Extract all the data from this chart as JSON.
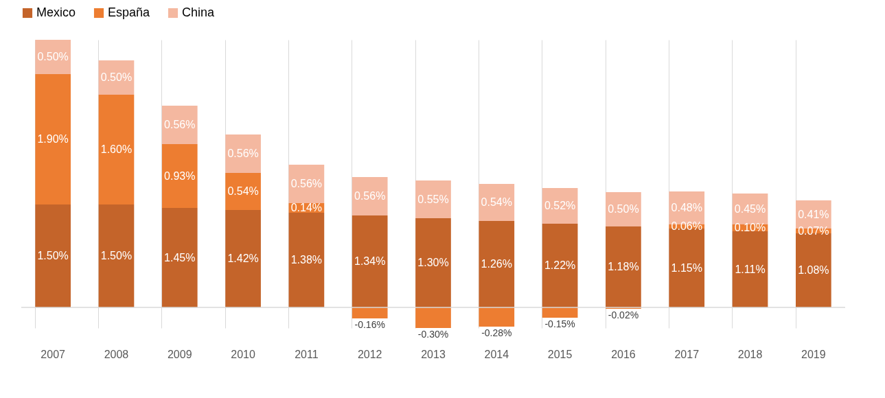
{
  "chart_data": {
    "type": "bar",
    "stacked": true,
    "categories": [
      "2007",
      "2008",
      "2009",
      "2010",
      "2011",
      "2012",
      "2013",
      "2014",
      "2015",
      "2016",
      "2017",
      "2018",
      "2019"
    ],
    "series": [
      {
        "name": "Mexico",
        "color": "#c4642a",
        "values": [
          1.5,
          1.5,
          1.45,
          1.42,
          1.38,
          1.34,
          1.3,
          1.26,
          1.22,
          1.18,
          1.15,
          1.11,
          1.08
        ],
        "value_labels": [
          "1.50%",
          "1.50%",
          "1.45%",
          "1.42%",
          "1.38%",
          "1.34%",
          "1.30%",
          "1.26%",
          "1.22%",
          "1.18%",
          "1.15%",
          "1.11%",
          "1.08%"
        ]
      },
      {
        "name": "España",
        "color": "#ed7d31",
        "values": [
          1.9,
          1.6,
          0.93,
          0.54,
          0.14,
          -0.16,
          -0.3,
          -0.28,
          -0.15,
          -0.02,
          0.06,
          0.1,
          0.07
        ],
        "value_labels": [
          "1.90%",
          "1.60%",
          "0.93%",
          "0.54%",
          "0.14%",
          "-0.16%",
          "-0.30%",
          "-0.28%",
          "-0.15%",
          "-0.02%",
          "0.06%",
          "0.10%",
          "0.07%"
        ]
      },
      {
        "name": "China",
        "color": "#f4b8a0",
        "values": [
          0.5,
          0.5,
          0.56,
          0.56,
          0.56,
          0.56,
          0.55,
          0.54,
          0.52,
          0.5,
          0.48,
          0.45,
          0.41
        ],
        "value_labels": [
          "0.50%",
          "0.50%",
          "0.56%",
          "0.56%",
          "0.56%",
          "0.56%",
          "0.55%",
          "0.54%",
          "0.52%",
          "0.50%",
          "0.48%",
          "0.45%",
          "0.41%"
        ]
      }
    ],
    "legend": "top",
    "grid": "x"
  }
}
